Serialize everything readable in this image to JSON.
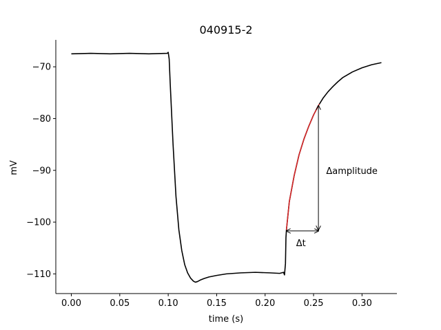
{
  "chart_data": {
    "type": "line",
    "title": "040915-2",
    "xlabel": "time (s)",
    "ylabel": "mV",
    "xlim": [
      -0.016,
      0.336
    ],
    "ylim": [
      -113.8,
      -64.8
    ],
    "xticks": [
      0.0,
      0.05,
      0.1,
      0.15,
      0.2,
      0.25,
      0.3
    ],
    "xtick_labels": [
      "0.00",
      "0.05",
      "0.10",
      "0.15",
      "0.20",
      "0.25",
      "0.30"
    ],
    "yticks": [
      -70,
      -80,
      -90,
      -100,
      -110
    ],
    "ytick_labels": [
      "−70",
      "−80",
      "−90",
      "−100",
      "−110"
    ],
    "grid": false,
    "series": [
      {
        "color": "#000000",
        "x": [
          0.0,
          0.02,
          0.04,
          0.06,
          0.08,
          0.099,
          0.1,
          0.101,
          0.102,
          0.105,
          0.108,
          0.111,
          0.114,
          0.117,
          0.12,
          0.123,
          0.126,
          0.128,
          0.13,
          0.133,
          0.137,
          0.142,
          0.15,
          0.16,
          0.175,
          0.19,
          0.205,
          0.215,
          0.219,
          0.22,
          0.221,
          0.2215,
          0.222,
          0.225,
          0.23,
          0.235,
          0.24,
          0.245,
          0.25,
          0.255,
          0.26,
          0.265,
          0.27,
          0.275,
          0.28,
          0.29,
          0.3,
          0.31,
          0.32
        ],
        "y": [
          -67.5,
          -67.4,
          -67.5,
          -67.4,
          -67.5,
          -67.4,
          -67.2,
          -68.5,
          -73.0,
          -85.0,
          -95.0,
          -101.5,
          -105.5,
          -108.2,
          -109.8,
          -110.8,
          -111.4,
          -111.6,
          -111.5,
          -111.2,
          -110.9,
          -110.6,
          -110.3,
          -110.0,
          -109.8,
          -109.7,
          -109.8,
          -109.9,
          -109.7,
          -110.2,
          -108.0,
          -103.0,
          -101.5,
          -96.0,
          -91.0,
          -87.0,
          -84.0,
          -81.5,
          -79.3,
          -77.5,
          -76.0,
          -74.8,
          -73.8,
          -72.9,
          -72.1,
          -71.0,
          -70.2,
          -69.6,
          -69.2
        ]
      },
      {
        "color": "#d62728",
        "x": [
          0.222,
          0.225,
          0.23,
          0.235,
          0.24,
          0.245,
          0.25,
          0.255,
          0.256
        ],
        "y": [
          -101.5,
          -96.0,
          -91.0,
          -87.0,
          -84.0,
          -81.5,
          -79.3,
          -77.5,
          -77.2
        ]
      }
    ],
    "annotations": [
      {
        "text": "Δamplitude",
        "x": 0.263,
        "y": -90.0
      },
      {
        "text": "Δt",
        "x": 0.232,
        "y": -104.0
      }
    ],
    "arrows": [
      {
        "type": "vertical",
        "x": 0.255,
        "y1": -101.5,
        "y2": -77.5
      },
      {
        "type": "horizontal",
        "y": -101.7,
        "x1": 0.222,
        "x2": 0.255
      }
    ]
  }
}
